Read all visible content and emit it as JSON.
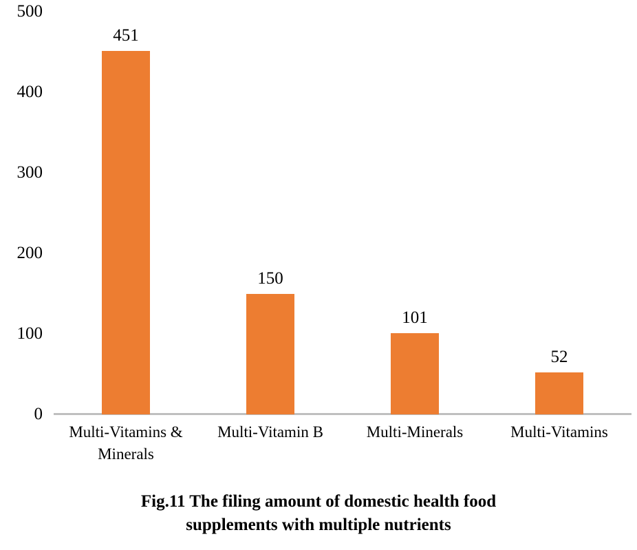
{
  "chart_data": {
    "type": "bar",
    "title": "Fig.11 The filing amount of domestic health food supplements with multiple nutrients",
    "title_lines": [
      "Fig.11 The filing amount of domestic health food",
      "supplements with multiple nutrients"
    ],
    "categories": [
      "Multi-Vitamins & Minerals",
      "Multi-Vitamin B",
      "Multi-Minerals",
      "Multi-Vitamins"
    ],
    "values": [
      451,
      150,
      101,
      52
    ],
    "data_labels": [
      "451",
      "150",
      "101",
      "52"
    ],
    "y_ticks": [
      0,
      100,
      200,
      300,
      400,
      500
    ],
    "ylim": [
      0,
      500
    ],
    "xlabel": "",
    "ylabel": "",
    "grid": false,
    "legend": "none",
    "colors": {
      "bar": "#ED7D31",
      "axis_line": "#BFBFBF",
      "text": "#000000",
      "background": "#FFFFFF"
    }
  }
}
